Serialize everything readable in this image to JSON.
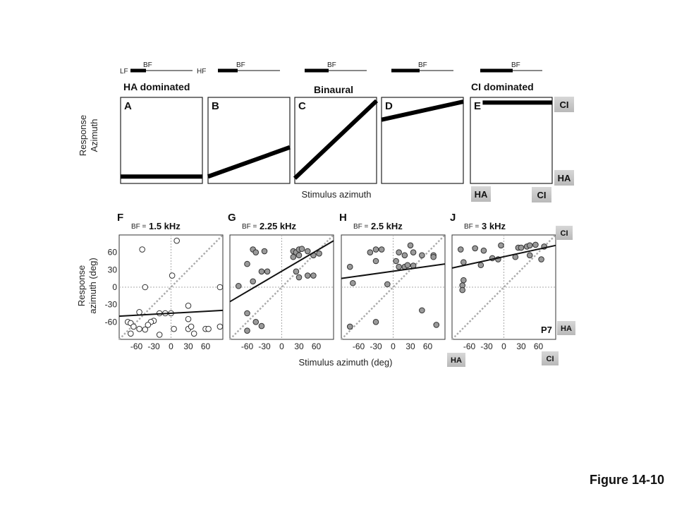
{
  "figure_label": "Figure 14-10",
  "top_row": {
    "ylabel": [
      "Response",
      "Azimuth"
    ],
    "xlabel": "Stimulus azimuth",
    "headers": {
      "ha": "HA dominated",
      "binaural": "Binaural",
      "ci": "CI dominated"
    },
    "bf_legend": {
      "lf": "LF",
      "hf": "HF",
      "bf": "BF"
    },
    "side_tags": {
      "ci_top": "CI",
      "ha_right": "HA",
      "ha_bottom": "HA",
      "ci_bottom": "CI"
    },
    "panels": [
      {
        "letter": "A",
        "line": [
          [
            0,
            0.08
          ],
          [
            1,
            0.08
          ]
        ],
        "bf_pos": 0.3
      },
      {
        "letter": "B",
        "line": [
          [
            0,
            0.08
          ],
          [
            1,
            0.42
          ]
        ],
        "bf_pos": 0.4
      },
      {
        "letter": "C",
        "line": [
          [
            0,
            0.06
          ],
          [
            1,
            0.96
          ]
        ],
        "bf_pos": 0.45
      },
      {
        "letter": "D",
        "line": [
          [
            0,
            0.74
          ],
          [
            1,
            0.95
          ]
        ],
        "bf_pos": 0.55
      },
      {
        "letter": "E",
        "line": [
          [
            0.15,
            0.94
          ],
          [
            1,
            0.94
          ]
        ],
        "bf_pos": 0.7
      }
    ]
  },
  "bottom_row": {
    "ylabel": [
      "Response",
      "azimuth (deg)"
    ],
    "xlabel": "Stimulus azimuth (deg)",
    "bf_prefix": "BF =",
    "side_tags": {
      "ci_top": "CI",
      "ha_right": "HA",
      "ha_bottom": "HA",
      "ci_bottom": "CI"
    },
    "subject": "P7"
  },
  "chart_data": [
    {
      "type": "scatter",
      "panel": "F",
      "bf": "1.5 kHz",
      "marker": "open",
      "xlim": [
        -90,
        90
      ],
      "ylim": [
        -90,
        90
      ],
      "xticks": [
        -60,
        -30,
        0,
        30,
        60
      ],
      "yticks": [
        60,
        30,
        0,
        -30,
        -60
      ],
      "fit_line": [
        [
          -90,
          -50
        ],
        [
          90,
          -40
        ]
      ],
      "points": [
        [
          -50,
          65
        ],
        [
          10,
          80
        ],
        [
          2,
          20
        ],
        [
          -45,
          0
        ],
        [
          85,
          0
        ],
        [
          30,
          -32
        ],
        [
          -55,
          -43
        ],
        [
          -20,
          -45
        ],
        [
          -10,
          -45
        ],
        [
          0,
          -45
        ],
        [
          30,
          -55
        ],
        [
          -30,
          -58
        ],
        [
          -75,
          -60
        ],
        [
          -70,
          -62
        ],
        [
          -35,
          -60
        ],
        [
          -40,
          -65
        ],
        [
          -65,
          -68
        ],
        [
          -55,
          -72
        ],
        [
          -45,
          -73
        ],
        [
          5,
          -72
        ],
        [
          30,
          -72
        ],
        [
          60,
          -72
        ],
        [
          65,
          -72
        ],
        [
          85,
          -68
        ],
        [
          35,
          -68
        ],
        [
          -70,
          -80
        ],
        [
          -20,
          -82
        ],
        [
          40,
          -80
        ]
      ]
    },
    {
      "type": "scatter",
      "panel": "G",
      "bf": "2.25 kHz",
      "marker": "filled",
      "xlim": [
        -90,
        90
      ],
      "ylim": [
        -90,
        90
      ],
      "xticks": [
        -60,
        -30,
        0,
        30,
        60
      ],
      "yticks": [
        60,
        30,
        0,
        -30,
        -60
      ],
      "fit_line": [
        [
          -90,
          -25
        ],
        [
          90,
          80
        ]
      ],
      "points": [
        [
          -50,
          65
        ],
        [
          -45,
          60
        ],
        [
          -30,
          62
        ],
        [
          20,
          62
        ],
        [
          25,
          60
        ],
        [
          30,
          65
        ],
        [
          35,
          66
        ],
        [
          45,
          62
        ],
        [
          55,
          55
        ],
        [
          65,
          58
        ],
        [
          30,
          55
        ],
        [
          20,
          52
        ],
        [
          -60,
          40
        ],
        [
          -35,
          27
        ],
        [
          -25,
          27
        ],
        [
          25,
          27
        ],
        [
          45,
          20
        ],
        [
          30,
          17
        ],
        [
          55,
          20
        ],
        [
          -50,
          10
        ],
        [
          -75,
          2
        ],
        [
          -60,
          -45
        ],
        [
          -45,
          -60
        ],
        [
          -35,
          -67
        ],
        [
          -60,
          -75
        ]
      ]
    },
    {
      "type": "scatter",
      "panel": "H",
      "bf": "2.5 kHz",
      "marker": "filled",
      "xlim": [
        -90,
        90
      ],
      "ylim": [
        -90,
        90
      ],
      "xticks": [
        -60,
        -30,
        0,
        30,
        60
      ],
      "yticks": [
        60,
        30,
        0,
        -30,
        -60
      ],
      "fit_line": [
        [
          -90,
          15
        ],
        [
          90,
          40
        ]
      ],
      "points": [
        [
          -40,
          60
        ],
        [
          -30,
          65
        ],
        [
          -20,
          65
        ],
        [
          10,
          60
        ],
        [
          20,
          55
        ],
        [
          35,
          60
        ],
        [
          30,
          72
        ],
        [
          50,
          55
        ],
        [
          70,
          55
        ],
        [
          70,
          52
        ],
        [
          -30,
          45
        ],
        [
          5,
          45
        ],
        [
          -75,
          35
        ],
        [
          10,
          35
        ],
        [
          20,
          35
        ],
        [
          25,
          38
        ],
        [
          35,
          37
        ],
        [
          -70,
          7
        ],
        [
          -10,
          5
        ],
        [
          50,
          -40
        ],
        [
          -30,
          -60
        ],
        [
          75,
          -65
        ],
        [
          -75,
          -68
        ]
      ]
    },
    {
      "type": "scatter",
      "panel": "J",
      "bf": "3 kHz",
      "marker": "filled",
      "xlim": [
        -90,
        90
      ],
      "ylim": [
        -90,
        90
      ],
      "xticks": [
        -60,
        -30,
        0,
        30,
        60
      ],
      "yticks": [
        60,
        30,
        0,
        -30,
        -60
      ],
      "fit_line": [
        [
          -90,
          33
        ],
        [
          90,
          72
        ]
      ],
      "points": [
        [
          -75,
          65
        ],
        [
          -50,
          67
        ],
        [
          -35,
          63
        ],
        [
          -5,
          72
        ],
        [
          25,
          68
        ],
        [
          30,
          68
        ],
        [
          40,
          70
        ],
        [
          45,
          72
        ],
        [
          55,
          73
        ],
        [
          70,
          70
        ],
        [
          -70,
          43
        ],
        [
          -40,
          38
        ],
        [
          -20,
          50
        ],
        [
          -10,
          48
        ],
        [
          20,
          52
        ],
        [
          45,
          55
        ],
        [
          65,
          48
        ],
        [
          -70,
          12
        ],
        [
          -72,
          3
        ],
        [
          -72,
          -5
        ]
      ]
    }
  ]
}
